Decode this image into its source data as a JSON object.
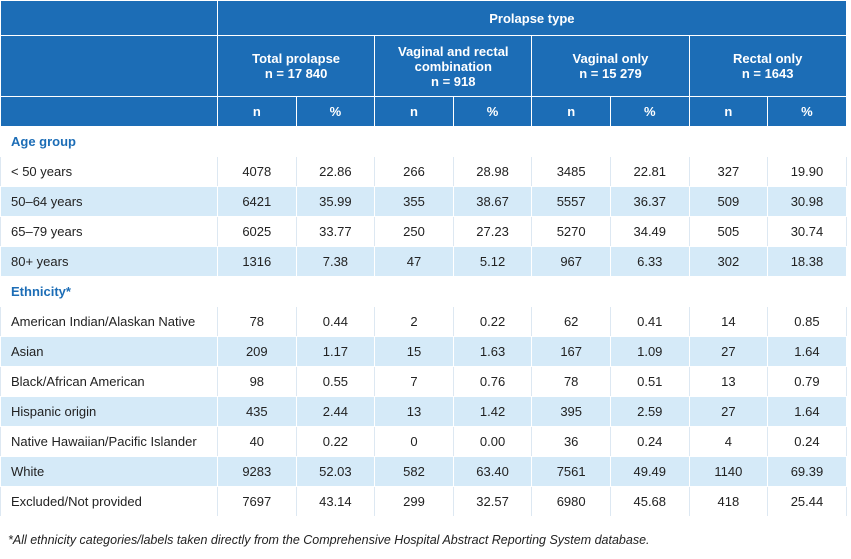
{
  "header": {
    "title": "Prolapse type",
    "groups": [
      {
        "label": "Total prolapse",
        "n": "n = 17 840"
      },
      {
        "label": "Vaginal and rectal combination",
        "n": "n = 918"
      },
      {
        "label": "Vaginal only",
        "n": "n = 15 279"
      },
      {
        "label": "Rectal only",
        "n": "n = 1643"
      }
    ],
    "sub_headers": [
      "n",
      "%",
      "n",
      "%",
      "n",
      "%",
      "n",
      "%"
    ]
  },
  "sections": [
    {
      "title": "Age group",
      "rows": [
        {
          "label": "< 50 years",
          "values": [
            "4078",
            "22.86",
            "266",
            "28.98",
            "3485",
            "22.81",
            "327",
            "19.90"
          ]
        },
        {
          "label": "50–64 years",
          "values": [
            "6421",
            "35.99",
            "355",
            "38.67",
            "5557",
            "36.37",
            "509",
            "30.98"
          ]
        },
        {
          "label": "65–79 years",
          "values": [
            "6025",
            "33.77",
            "250",
            "27.23",
            "5270",
            "34.49",
            "505",
            "30.74"
          ]
        },
        {
          "label": "80+ years",
          "values": [
            "1316",
            "7.38",
            "47",
            "5.12",
            "967",
            "6.33",
            "302",
            "18.38"
          ]
        }
      ]
    },
    {
      "title": "Ethnicity*",
      "rows": [
        {
          "label": "American Indian/Alaskan Native",
          "values": [
            "78",
            "0.44",
            "2",
            "0.22",
            "62",
            "0.41",
            "14",
            "0.85"
          ]
        },
        {
          "label": "Asian",
          "values": [
            "209",
            "1.17",
            "15",
            "1.63",
            "167",
            "1.09",
            "27",
            "1.64"
          ]
        },
        {
          "label": "Black/African American",
          "values": [
            "98",
            "0.55",
            "7",
            "0.76",
            "78",
            "0.51",
            "13",
            "0.79"
          ]
        },
        {
          "label": "Hispanic origin",
          "values": [
            "435",
            "2.44",
            "13",
            "1.42",
            "395",
            "2.59",
            "27",
            "1.64"
          ]
        },
        {
          "label": "Native Hawaiian/Pacific Islander",
          "values": [
            "40",
            "0.22",
            "0",
            "0.00",
            "36",
            "0.24",
            "4",
            "0.24"
          ]
        },
        {
          "label": "White",
          "values": [
            "9283",
            "52.03",
            "582",
            "63.40",
            "7561",
            "49.49",
            "1140",
            "69.39"
          ]
        },
        {
          "label": "Excluded/Not provided",
          "values": [
            "7697",
            "43.14",
            "299",
            "32.57",
            "6980",
            "45.68",
            "418",
            "25.44"
          ]
        }
      ]
    }
  ],
  "footnote": "*All ethnicity categories/labels taken directly from the Comprehensive Hospital Abstract Reporting System database."
}
